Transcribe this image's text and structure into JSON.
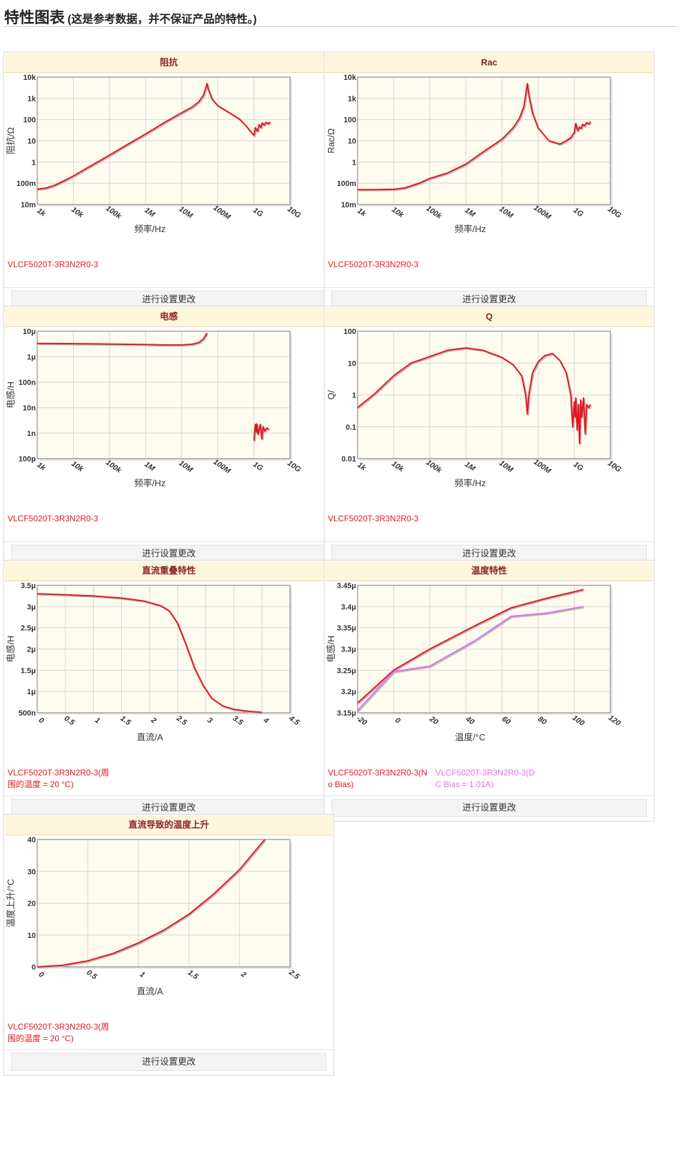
{
  "page": {
    "title": "特性图表",
    "subtitle": "(这是参考数据，并不保证产品的特性。)"
  },
  "button_label": "进行设置更改",
  "colors": {
    "series_red": "#e8141e",
    "series_pink": "#e070e0",
    "header_bg": "#fdf6dc",
    "header_text": "#8a2323",
    "plot_bg": "#fefbef"
  },
  "charts": [
    {
      "id": "impedance",
      "title": "阻抗",
      "legend": [
        {
          "text": "VLCF5020T-3R3N2R0-3",
          "color": "#e8141e"
        }
      ],
      "chart_data": {
        "type": "line",
        "title": "阻抗",
        "xlabel": "频率/Hz",
        "ylabel": "阻抗/Ω",
        "xscale": "log",
        "yscale": "log",
        "xlim": [
          1000,
          10000000000
        ],
        "ylim": [
          0.01,
          10000
        ],
        "xticks": [
          1000,
          10000,
          100000,
          1000000,
          10000000,
          100000000,
          1000000000,
          10000000000
        ],
        "xticklabels": [
          "1k",
          "10k",
          "100k",
          "1M",
          "10M",
          "100M",
          "1G",
          "10G"
        ],
        "yticks": [
          0.01,
          0.1,
          1,
          10,
          100,
          1000,
          10000
        ],
        "yticklabels": [
          "10m",
          "100m",
          "1",
          "10",
          "100",
          "1k",
          "10k"
        ],
        "grid": true,
        "series": [
          {
            "name": "VLCF5020T-3R3N2R0-3",
            "color": "#e8141e",
            "x": [
              1000,
              1800,
              3000,
              5000,
              10000,
              30000,
              100000,
              300000,
              1000000,
              3000000,
              10000000,
              20000000,
              30000000,
              40000000,
              45000000,
              50000000,
              55000000,
              70000000,
              100000000,
              200000000,
              400000000,
              600000000,
              800000000,
              1000000000,
              1100000000,
              1250000000,
              1400000000,
              1550000000,
              1700000000,
              1900000000,
              2200000000,
              2500000000,
              2800000000
            ],
            "y": [
              0.052,
              0.06,
              0.08,
              0.12,
              0.22,
              0.65,
              2.1,
              6.4,
              21,
              65,
              210,
              400,
              700,
              1400,
              2600,
              5000,
              2600,
              900,
              450,
              220,
              105,
              52,
              28,
              18,
              42,
              28,
              58,
              42,
              70,
              55,
              75,
              62,
              78
            ]
          }
        ]
      }
    },
    {
      "id": "rac",
      "title": "Rac",
      "legend": [
        {
          "text": "VLCF5020T-3R3N2R0-3",
          "color": "#e8141e"
        }
      ],
      "chart_data": {
        "type": "line",
        "title": "Rac",
        "xlabel": "频率/Hz",
        "ylabel": "Rac/Ω",
        "xscale": "log",
        "yscale": "log",
        "xlim": [
          1000,
          10000000000
        ],
        "ylim": [
          0.01,
          10000
        ],
        "xticks": [
          1000,
          10000,
          100000,
          1000000,
          10000000,
          100000000,
          1000000000,
          10000000000
        ],
        "xticklabels": [
          "1k",
          "10k",
          "100k",
          "1M",
          "10M",
          "100M",
          "1G",
          "10G"
        ],
        "yticks": [
          0.01,
          0.1,
          1,
          10,
          100,
          1000,
          10000
        ],
        "yticklabels": [
          "10m",
          "100m",
          "1",
          "10",
          "100",
          "1k",
          "10k"
        ],
        "grid": true,
        "series": [
          {
            "name": "VLCF5020T-3R3N2R0-3",
            "color": "#e8141e",
            "x": [
              1000,
              3000,
              10000,
              20000,
              50000,
              100000,
              300000,
              1000000,
              3000000,
              10000000,
              20000000,
              30000000,
              40000000,
              45000000,
              50000000,
              55000000,
              70000000,
              100000000,
              200000000,
              400000000,
              600000000,
              800000000,
              1000000000,
              1100000000,
              1250000000,
              1400000000,
              1550000000,
              1700000000,
              1900000000,
              2200000000,
              2500000000,
              2800000000
            ],
            "y": [
              0.05,
              0.05,
              0.052,
              0.06,
              0.1,
              0.17,
              0.3,
              0.8,
              3,
              12,
              40,
              110,
              400,
              1500,
              5000,
              1500,
              200,
              40,
              10,
              7,
              10,
              14,
              25,
              65,
              30,
              45,
              38,
              60,
              50,
              72,
              62,
              80
            ]
          }
        ]
      }
    },
    {
      "id": "inductance",
      "title": "电感",
      "legend": [
        {
          "text": "VLCF5020T-3R3N2R0-3",
          "color": "#e8141e"
        }
      ],
      "chart_data": {
        "type": "line",
        "title": "电感",
        "xlabel": "频率/Hz",
        "ylabel": "电感/H",
        "xscale": "log",
        "yscale": "log",
        "xlim": [
          1000,
          10000000000
        ],
        "ylim": [
          1e-10,
          1e-05
        ],
        "xticks": [
          1000,
          10000,
          100000,
          1000000,
          10000000,
          100000000,
          1000000000,
          10000000000
        ],
        "xticklabels": [
          "1k",
          "10k",
          "100k",
          "1M",
          "10M",
          "100M",
          "1G",
          "10G"
        ],
        "yticks": [
          1e-10,
          1e-09,
          1e-08,
          1e-07,
          1e-06,
          1e-05
        ],
        "yticklabels": [
          "100p",
          "1n",
          "10n",
          "100n",
          "1μ",
          "10μ"
        ],
        "grid": true,
        "series": [
          {
            "name": "VLCF5020T-3R3N2R0-3",
            "color": "#e8141e",
            "x": [
              1000,
              10000,
              100000,
              1000000,
              3000000,
              10000000,
              20000000,
              30000000,
              40000000,
              45000000,
              50000000,
              null,
              1000000000,
              1050000000,
              1100000000,
              1150000000,
              1200000000,
              1300000000,
              1400000000,
              1500000000,
              1650000000,
              1800000000,
              2000000000,
              2300000000,
              2600000000
            ],
            "y": [
              3.3e-06,
              3.25e-06,
              3.15e-06,
              3e-06,
              2.9e-06,
              2.9e-06,
              3.1e-06,
              3.6e-06,
              5e-06,
              6.5e-06,
              8.5e-06,
              null,
              5e-10,
              1.2e-09,
              2.2e-09,
              1.1e-09,
              2.3e-09,
              9e-10,
              1.4e-09,
              2.2e-09,
              6e-10,
              1.8e-09,
              1.2e-09,
              1.6e-09,
              1.4e-09
            ]
          }
        ]
      }
    },
    {
      "id": "q",
      "title": "Q",
      "legend": [
        {
          "text": "VLCF5020T-3R3N2R0-3",
          "color": "#e8141e"
        }
      ],
      "chart_data": {
        "type": "line",
        "title": "Q",
        "xlabel": "频率/Hz",
        "ylabel": "Q/",
        "xscale": "log",
        "yscale": "log",
        "xlim": [
          1000,
          10000000000
        ],
        "ylim": [
          0.01,
          100
        ],
        "xticks": [
          1000,
          10000,
          100000,
          1000000,
          10000000,
          100000000,
          1000000000,
          10000000000
        ],
        "xticklabels": [
          "1k",
          "10k",
          "100k",
          "1M",
          "10M",
          "100M",
          "1G",
          "10G"
        ],
        "yticks": [
          0.01,
          0.1,
          1,
          10,
          100
        ],
        "yticklabels": [
          "0.01",
          "0.1",
          "1",
          "10",
          "100"
        ],
        "grid": true,
        "series": [
          {
            "name": "VLCF5020T-3R3N2R0-3",
            "color": "#e8141e",
            "x": [
              1000,
              3000,
              10000,
              30000,
              100000,
              300000,
              1000000,
              3000000,
              10000000,
              20000000,
              35000000,
              45000000,
              50000000,
              55000000,
              70000000,
              100000000,
              150000000,
              250000000,
              400000000,
              600000000,
              800000000,
              900000000,
              1000000000,
              1050000000,
              1100000000,
              1200000000,
              1300000000,
              1400000000,
              1500000000,
              1600000000,
              1800000000,
              2000000000,
              2200000000,
              2500000000,
              2800000000
            ],
            "y": [
              0.4,
              1.1,
              4,
              10,
              16,
              25,
              30,
              25,
              15,
              9,
              4,
              1,
              0.25,
              1,
              5,
              11,
              17,
              20,
              12,
              5,
              1,
              0.1,
              0.6,
              0.2,
              0.8,
              0.08,
              0.5,
              0.03,
              0.7,
              0.2,
              0.8,
              0.06,
              0.5,
              0.4,
              0.5
            ]
          }
        ]
      }
    },
    {
      "id": "dc-bias",
      "title": "直流重叠特性",
      "legend": [
        {
          "text": "VLCF5020T-3R3N2R0-3(周围的温度 = 20 °C)",
          "color": "#e8141e"
        }
      ],
      "chart_data": {
        "type": "line",
        "title": "直流重叠特性",
        "xlabel": "直流/A",
        "ylabel": "电感/H",
        "xlim": [
          0,
          4.5
        ],
        "ylim": [
          5e-07,
          3.5e-06
        ],
        "xticks": [
          0,
          0.5,
          1,
          1.5,
          2,
          2.5,
          3,
          3.5,
          4,
          4.5
        ],
        "xticklabels": [
          "0",
          "0.5",
          "1",
          "1.5",
          "2",
          "2.5",
          "3",
          "3.5",
          "4",
          "4.5"
        ],
        "yticks": [
          5e-07,
          1e-06,
          1.5e-06,
          2e-06,
          2.5e-06,
          3e-06,
          3.5e-06
        ],
        "yticklabels": [
          "500n",
          "1μ",
          "1.5μ",
          "2μ",
          "2.5μ",
          "3μ",
          "3.5μ"
        ],
        "grid": true,
        "series": [
          {
            "name": "VLCF5020T-3R3N2R0-3(周围的温度 = 20 °C)",
            "color": "#e8141e",
            "x": [
              0,
              0.5,
              1,
              1.5,
              1.9,
              2.2,
              2.35,
              2.5,
              2.65,
              2.8,
              2.95,
              3.1,
              3.3,
              3.5,
              3.8,
              4.0
            ],
            "y": [
              3.3e-06,
              3.28e-06,
              3.25e-06,
              3.2e-06,
              3.13e-06,
              3.02e-06,
              2.9e-06,
              2.6e-06,
              2.1e-06,
              1.55e-06,
              1.15e-06,
              8.5e-07,
              6.6e-07,
              5.8e-07,
              5.3e-07,
              5.1e-07
            ]
          }
        ]
      }
    },
    {
      "id": "temperature",
      "title": "温度特性",
      "legend": [
        {
          "text": "VLCF5020T-3R3N2R0-3(No Bias)",
          "color": "#e8141e"
        },
        {
          "text": "VLCF5020T-3R3N2R0-3(DC Bias = 1.01A)",
          "color": "#e070e0"
        }
      ],
      "chart_data": {
        "type": "line",
        "title": "温度特性",
        "xlabel": "温度/°C",
        "ylabel": "电感/H",
        "xlim": [
          -20,
          120
        ],
        "ylim": [
          3.15e-06,
          3.45e-06
        ],
        "xticks": [
          -20,
          0,
          20,
          40,
          60,
          80,
          100,
          120
        ],
        "xticklabels": [
          "-20",
          "0",
          "20",
          "40",
          "60",
          "80",
          "100",
          "120"
        ],
        "yticks": [
          3.15e-06,
          3.2e-06,
          3.25e-06,
          3.3e-06,
          3.35e-06,
          3.4e-06,
          3.45e-06
        ],
        "yticklabels": [
          "3.15μ",
          "3.2μ",
          "3.25μ",
          "3.3μ",
          "3.35μ",
          "3.4μ",
          "3.45μ"
        ],
        "grid": true,
        "series": [
          {
            "name": "VLCF5020T-3R3N2R0-3(No Bias)",
            "color": "#e8141e",
            "x": [
              -20,
              0,
              20,
              45,
              65,
              85,
              105
            ],
            "y": [
              3.173e-06,
              3.25e-06,
              3.3e-06,
              3.355e-06,
              3.397e-06,
              3.42e-06,
              3.44e-06
            ]
          },
          {
            "name": "VLCF5020T-3R3N2R0-3(DC Bias = 1.01A)",
            "color": "#e070e0",
            "x": [
              -20,
              0,
              20,
              45,
              65,
              85,
              105
            ],
            "y": [
              3.155e-06,
              3.247e-06,
              3.26e-06,
              3.32e-06,
              3.377e-06,
              3.385e-06,
              3.4e-06
            ]
          }
        ]
      }
    },
    {
      "id": "temp-rise",
      "title": "直流导致的温度上升",
      "legend": [
        {
          "text": "VLCF5020T-3R3N2R0-3(周围的温度 = 20 °C)",
          "color": "#e8141e"
        }
      ],
      "chart_data": {
        "type": "line",
        "title": "直流导致的温度上升",
        "xlabel": "直流/A",
        "ylabel": "温度上升/°C",
        "xlim": [
          0,
          2.5
        ],
        "ylim": [
          0,
          40
        ],
        "xticks": [
          0,
          0.5,
          1,
          1.5,
          2,
          2.5
        ],
        "xticklabels": [
          "0",
          "0.5",
          "1",
          "1.5",
          "2",
          "2.5"
        ],
        "yticks": [
          0,
          10,
          20,
          30,
          40
        ],
        "yticklabels": [
          "0",
          "10",
          "20",
          "30",
          "40"
        ],
        "grid": true,
        "series": [
          {
            "name": "VLCF5020T-3R3N2R0-3(周围的温度 = 20 °C)",
            "color": "#e8141e",
            "x": [
              0,
              0.25,
              0.5,
              0.75,
              1.0,
              1.25,
              1.5,
              1.75,
              2.0,
              2.25
            ],
            "y": [
              0,
              0.5,
              1.9,
              4.2,
              7.5,
              11.5,
              16.5,
              23,
              30.5,
              40
            ]
          }
        ]
      }
    }
  ]
}
